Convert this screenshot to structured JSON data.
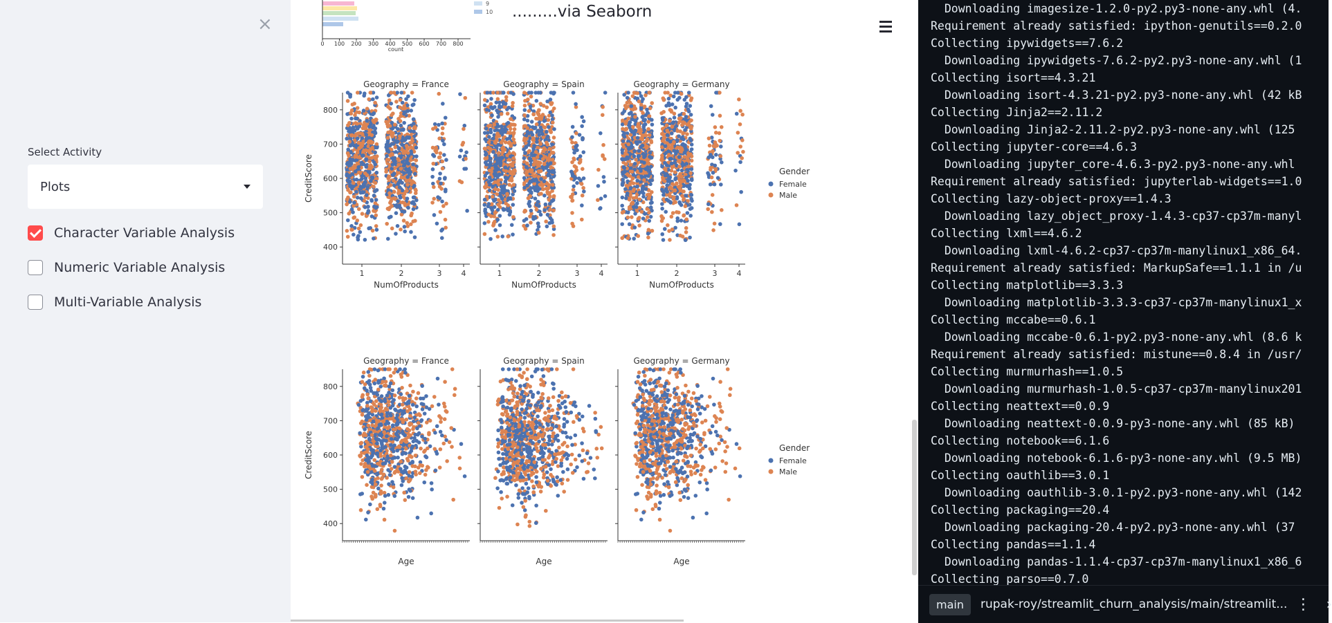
{
  "sidebar": {
    "close_icon": "×",
    "select_label": "Select Activity",
    "select_value": "Plots",
    "checkboxes": [
      {
        "label": "Character Variable Analysis",
        "checked": true
      },
      {
        "label": "Numeric Variable Analysis",
        "checked": false
      },
      {
        "label": "Multi-Variable Analysis",
        "checked": false
      }
    ]
  },
  "main": {
    "heading": ".........via Seaborn",
    "top_chart": {
      "legend": [
        "9",
        "10"
      ],
      "xticks": [
        "0",
        "100",
        "200",
        "300",
        "400",
        "500",
        "600",
        "700",
        "800"
      ],
      "xlabel": "count"
    }
  },
  "colors": {
    "female": "#4c72b0",
    "male": "#dd8452",
    "accent": "#ff4b4b"
  },
  "chart_data": [
    {
      "type": "scatter",
      "kind": "swarm",
      "facets": [
        "Geography = France",
        "Geography = Spain",
        "Geography = Germany"
      ],
      "xlabel": "NumOfProducts",
      "ylabel": "CreditScore",
      "xticks": [
        "1",
        "2",
        "3",
        "4"
      ],
      "yticks": [
        "400",
        "500",
        "600",
        "700",
        "800"
      ],
      "ylim": [
        350,
        850
      ],
      "legend_title": "Gender",
      "series": [
        {
          "name": "Female"
        },
        {
          "name": "Male"
        }
      ],
      "legend_position": "right"
    },
    {
      "type": "scatter",
      "kind": "swarm",
      "facets": [
        "Geography = France",
        "Geography = Spain",
        "Geography = Germany"
      ],
      "xlabel": "Age",
      "ylabel": "CreditScore",
      "yticks": [
        "400",
        "500",
        "600",
        "700",
        "800"
      ],
      "ylim": [
        350,
        850
      ],
      "legend_title": "Gender",
      "series": [
        {
          "name": "Female"
        },
        {
          "name": "Male"
        }
      ],
      "legend_position": "right"
    }
  ],
  "terminal": {
    "lines": [
      "  Downloading imagesize-1.2.0-py2.py3-none-any.whl (4.",
      "Requirement already satisfied: ipython-genutils==0.2.0",
      "Collecting ipywidgets==7.6.2",
      "  Downloading ipywidgets-7.6.2-py2.py3-none-any.whl (1",
      "Collecting isort==4.3.21",
      "  Downloading isort-4.3.21-py2.py3-none-any.whl (42 kB",
      "Collecting Jinja2==2.11.2",
      "  Downloading Jinja2-2.11.2-py2.py3-none-any.whl (125",
      "Collecting jupyter-core==4.6.3",
      "  Downloading jupyter_core-4.6.3-py2.py3-none-any.whl",
      "Requirement already satisfied: jupyterlab-widgets==1.0",
      "Collecting lazy-object-proxy==1.4.3",
      "  Downloading lazy_object_proxy-1.4.3-cp37-cp37m-manyl",
      "Collecting lxml==4.6.2",
      "  Downloading lxml-4.6.2-cp37-cp37m-manylinux1_x86_64.",
      "Requirement already satisfied: MarkupSafe==1.1.1 in /u",
      "Collecting matplotlib==3.3.3",
      "  Downloading matplotlib-3.3.3-cp37-cp37m-manylinux1_x",
      "Collecting mccabe==0.6.1",
      "  Downloading mccabe-0.6.1-py2.py3-none-any.whl (8.6 k",
      "Requirement already satisfied: mistune==0.8.4 in /usr/",
      "Collecting murmurhash==1.0.5",
      "  Downloading murmurhash-1.0.5-cp37-cp37m-manylinux201",
      "Collecting neattext==0.0.9",
      "  Downloading neattext-0.0.9-py3-none-any.whl (85 kB)",
      "Collecting notebook==6.1.6",
      "  Downloading notebook-6.1.6-py3-none-any.whl (9.5 MB)",
      "Collecting oauthlib==3.0.1",
      "  Downloading oauthlib-3.0.1-py2.py3-none-any.whl (142",
      "Collecting packaging==20.4",
      "  Downloading packaging-20.4-py2.py3-none-any.whl (37",
      "Collecting pandas==1.1.4",
      "  Downloading pandas-1.1.4-cp37-cp37m-manylinux1_x86_6",
      "Collecting parso==0.7.0"
    ],
    "branch": "main",
    "repo_path": "rupak-roy/streamlit_churn_analysis/main/streamlit..."
  }
}
